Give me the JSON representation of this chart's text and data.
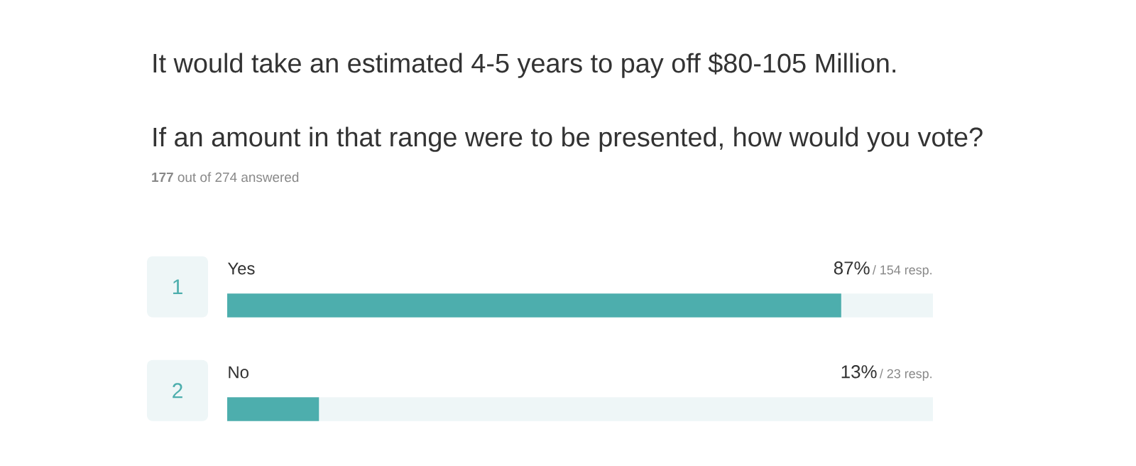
{
  "chart_data": {
    "type": "bar",
    "orientation": "horizontal",
    "title": "It would take an estimated 4-5 years to pay off $80-105 Million.",
    "subtitle": "If an amount in that range were to be presented, how would you vote?",
    "categories": [
      "Yes",
      "No"
    ],
    "values": [
      87,
      13
    ],
    "value_labels": [
      "87%",
      "13%"
    ],
    "color": "#4daead",
    "xlim": [
      0,
      100
    ],
    "tick_labels": false,
    "annotations": [
      "**177** out of 274 answered",
      "1",
      "2",
      "/ 154 resp.",
      "/ 23 resp."
    ]
  }
}
